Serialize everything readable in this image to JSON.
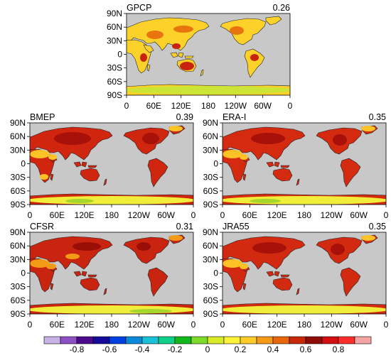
{
  "panels": [
    {
      "id": "gpcp",
      "name": "GPCP",
      "value": "0.26"
    },
    {
      "id": "bmep",
      "name": "BMEP",
      "value": "0.39"
    },
    {
      "id": "erai",
      "name": "ERA-I",
      "value": "0.35"
    },
    {
      "id": "cfsr",
      "name": "CFSR",
      "value": "0.31"
    },
    {
      "id": "jra55",
      "name": "JRA55",
      "value": "0.35"
    }
  ],
  "lat_ticks": [
    "90N",
    "60N",
    "30N",
    "0",
    "30S",
    "60S",
    "90S"
  ],
  "lon_ticks": [
    "0",
    "60E",
    "120E",
    "180",
    "120W",
    "60W",
    "0"
  ],
  "colorbar": {
    "labels": [
      "-0.8",
      "-0.6",
      "-0.4",
      "-0.2",
      "0",
      "0.2",
      "0.4",
      "0.6",
      "0.8"
    ],
    "colors": [
      "#c9b3e6",
      "#8e4fc2",
      "#4b0a8c",
      "#160a9a",
      "#0040e0",
      "#0a8ad6",
      "#18c0d8",
      "#0ed08a",
      "#12b81a",
      "#7ddc2a",
      "#d7ec26",
      "#fff33a",
      "#fccc28",
      "#f59a16",
      "#e8660c",
      "#c72808",
      "#8f0b07",
      "#d30f12",
      "#ff2d2a",
      "#f4a3a3"
    ]
  },
  "colors": {
    "ocean": "#c8c8c8",
    "land_low": "#ffe83a",
    "land_mid": "#f5a018",
    "land_high": "#d22510",
    "antarctica": "#f0ee3a"
  }
}
